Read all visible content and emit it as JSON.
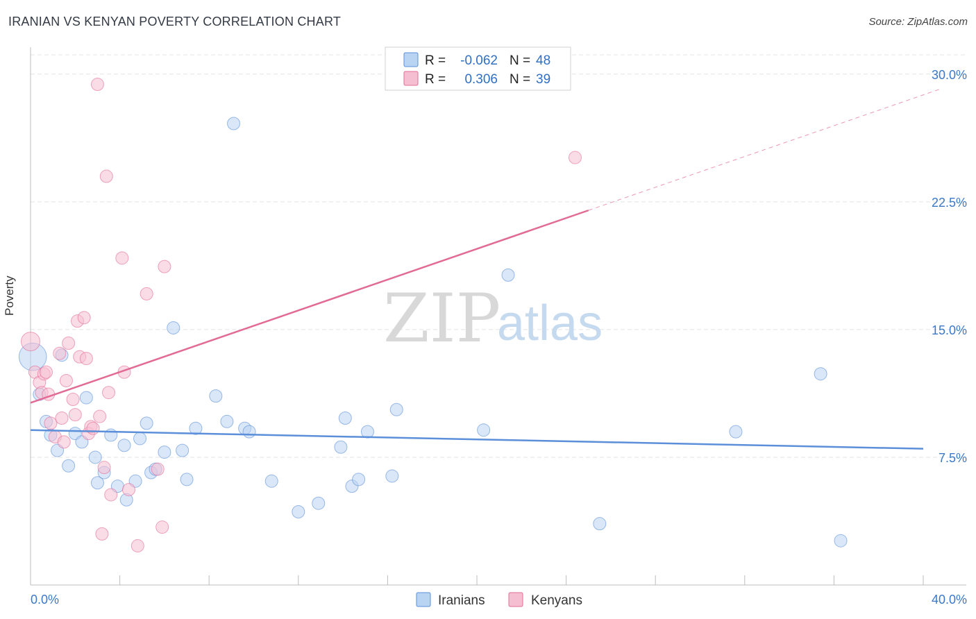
{
  "chart_data": {
    "type": "scatter",
    "title": "IRANIAN VS KENYAN POVERTY CORRELATION CHART",
    "source": "Source: ZipAtlas.com",
    "ylabel": "Poverty",
    "xlim": [
      0,
      40
    ],
    "ylim": [
      0,
      31.5
    ],
    "y_ticks": [
      {
        "value": 7.5,
        "label": "7.5%"
      },
      {
        "value": 15,
        "label": "15.0%"
      },
      {
        "value": 22.5,
        "label": "22.5%"
      },
      {
        "value": 30,
        "label": "30.0%"
      }
    ],
    "x_tick_labels": {
      "min": "0.0%",
      "max": "40.0%"
    },
    "watermark": {
      "part1": "ZIP",
      "part2": "atlas"
    },
    "legend": [
      {
        "r_label": "R =",
        "r_value": "-0.062",
        "n_label": "N =",
        "n_value": "48"
      },
      {
        "r_label": "R =",
        "r_value": "0.306",
        "n_label": "N =",
        "n_value": "39"
      }
    ],
    "series": [
      {
        "name": "Iranians",
        "color": "#5b8fd9",
        "fill": "#b9d3f2",
        "trend": {
          "x0": 0,
          "y0": 9.1,
          "x1": 40,
          "y1": 8.0,
          "dashed_after": null
        },
        "points": [
          [
            0.1,
            13.4,
            2.2
          ],
          [
            0.4,
            11.2,
            1
          ],
          [
            0.7,
            9.6,
            1
          ],
          [
            0.9,
            8.8,
            1
          ],
          [
            1.2,
            7.9,
            1
          ],
          [
            1.4,
            13.5,
            1
          ],
          [
            1.7,
            7.0,
            1
          ],
          [
            2.0,
            8.9,
            1
          ],
          [
            2.3,
            8.4,
            1
          ],
          [
            2.5,
            11.0,
            1
          ],
          [
            2.9,
            7.5,
            1
          ],
          [
            3.0,
            6.0,
            1
          ],
          [
            3.3,
            6.6,
            1
          ],
          [
            3.6,
            8.8,
            1
          ],
          [
            3.9,
            5.8,
            1
          ],
          [
            4.2,
            8.2,
            1
          ],
          [
            4.3,
            5.0,
            1
          ],
          [
            4.7,
            6.1,
            1
          ],
          [
            4.9,
            8.6,
            1
          ],
          [
            5.2,
            9.5,
            1
          ],
          [
            5.4,
            6.6,
            1
          ],
          [
            5.6,
            6.8,
            1
          ],
          [
            6.0,
            7.8,
            1
          ],
          [
            6.4,
            15.1,
            1
          ],
          [
            6.8,
            7.9,
            1
          ],
          [
            7.0,
            6.2,
            1
          ],
          [
            7.4,
            9.2,
            1
          ],
          [
            8.3,
            11.1,
            1
          ],
          [
            8.8,
            9.6,
            1
          ],
          [
            9.1,
            27.1,
            1
          ],
          [
            9.6,
            9.2,
            1
          ],
          [
            9.8,
            9.0,
            1
          ],
          [
            10.8,
            6.1,
            1
          ],
          [
            12.0,
            4.3,
            1
          ],
          [
            12.9,
            4.8,
            1
          ],
          [
            13.9,
            8.1,
            1
          ],
          [
            14.1,
            9.8,
            1
          ],
          [
            14.4,
            5.8,
            1
          ],
          [
            14.7,
            6.2,
            1
          ],
          [
            15.1,
            9.0,
            1
          ],
          [
            16.2,
            6.4,
            1
          ],
          [
            16.4,
            10.3,
            1
          ],
          [
            20.3,
            9.1,
            1
          ],
          [
            21.4,
            18.2,
            1
          ],
          [
            25.5,
            3.6,
            1
          ],
          [
            31.6,
            9.0,
            1
          ],
          [
            35.4,
            12.4,
            1
          ],
          [
            36.3,
            2.6,
            1
          ]
        ]
      },
      {
        "name": "Kenyans",
        "color": "#e26b96",
        "fill": "#f6bfd1",
        "trend": {
          "x0": 0,
          "y0": 10.7,
          "x1": 25.0,
          "y1": 22.0,
          "dashed_after": 40.0
        },
        "points": [
          [
            0.0,
            14.3,
            1.5
          ],
          [
            0.2,
            12.5,
            1
          ],
          [
            0.4,
            11.9,
            1
          ],
          [
            0.5,
            11.3,
            1
          ],
          [
            0.6,
            12.4,
            1
          ],
          [
            0.7,
            12.5,
            1
          ],
          [
            0.8,
            11.2,
            1
          ],
          [
            0.9,
            9.5,
            1
          ],
          [
            1.1,
            8.7,
            1
          ],
          [
            1.3,
            13.6,
            1
          ],
          [
            1.4,
            9.8,
            1
          ],
          [
            1.5,
            8.4,
            1
          ],
          [
            1.6,
            12.0,
            1
          ],
          [
            1.7,
            14.2,
            1
          ],
          [
            1.9,
            10.9,
            1
          ],
          [
            2.0,
            10.0,
            1
          ],
          [
            2.1,
            15.5,
            1
          ],
          [
            2.2,
            13.4,
            1
          ],
          [
            2.4,
            15.7,
            1
          ],
          [
            2.5,
            13.3,
            1
          ],
          [
            2.6,
            8.9,
            1
          ],
          [
            2.7,
            9.3,
            1
          ],
          [
            2.8,
            9.2,
            1
          ],
          [
            3.1,
            9.9,
            1
          ],
          [
            3.2,
            3.0,
            1
          ],
          [
            3.3,
            6.9,
            1
          ],
          [
            3.5,
            11.3,
            1
          ],
          [
            3.6,
            5.3,
            1
          ],
          [
            3.0,
            29.4,
            1
          ],
          [
            3.4,
            24.0,
            1
          ],
          [
            4.1,
            19.2,
            1
          ],
          [
            4.2,
            12.5,
            1
          ],
          [
            4.4,
            5.6,
            1
          ],
          [
            4.8,
            2.3,
            1
          ],
          [
            5.2,
            17.1,
            1
          ],
          [
            5.7,
            6.8,
            1
          ],
          [
            5.9,
            3.4,
            1
          ],
          [
            6.0,
            18.7,
            1
          ],
          [
            24.4,
            25.1,
            1
          ]
        ]
      }
    ]
  }
}
